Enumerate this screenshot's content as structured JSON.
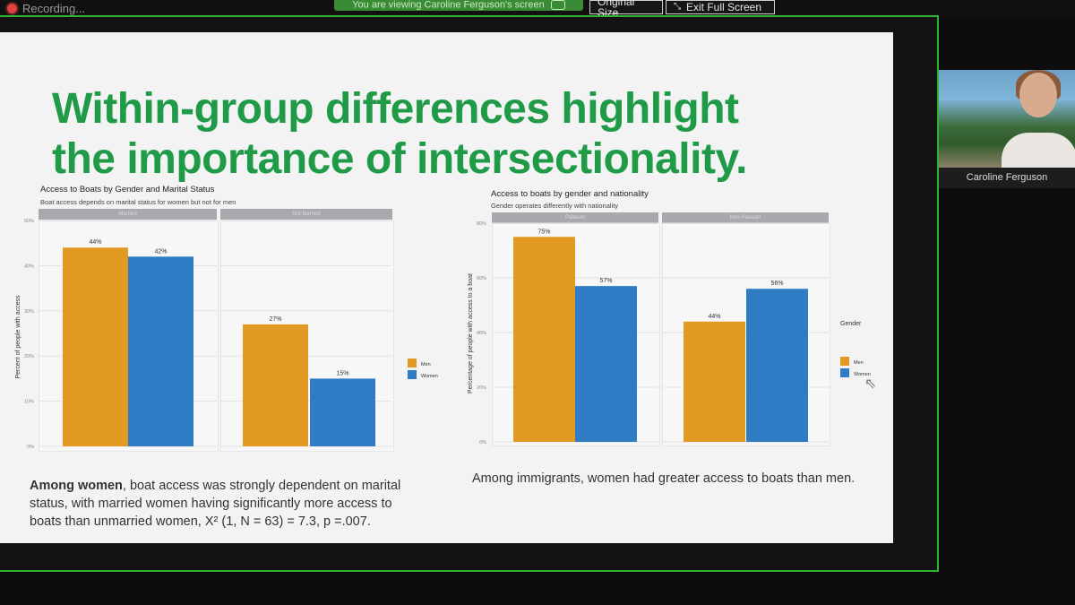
{
  "topbar": {
    "recording_label": "Recording...",
    "viewing_label": "You are viewing Caroline Ferguson's screen",
    "original_size_label": "Original Size",
    "exit_fullscreen_label": "Exit Full Screen"
  },
  "participant": {
    "name": "Caroline Ferguson"
  },
  "slide": {
    "title_line1": "Within-group differences highlight",
    "title_line2": "the importance of intersectionality.",
    "caption_left_bold": "Among women",
    "caption_left_line1": ", boat access was strongly dependent on marital",
    "caption_left_line2": "status, with married women having significantly more access to",
    "caption_left_line3": "boats than unmarried women, X² (1, N = 63) = 7.3, p =.007.",
    "caption_right": "Among immigrants, women had greater access to boats than men."
  },
  "colors": {
    "men": "#e39a22",
    "women": "#2f7cc4",
    "title_green": "#1f9a46",
    "frame_green": "#31b331"
  },
  "chart_data": [
    {
      "type": "bar",
      "title": "Access to Boats by Gender and Marital Status",
      "subtitle": "Boat access depends on marital status for women but not for men",
      "ylabel": "Percent of people with access",
      "ylim": [
        0,
        50
      ],
      "yticks": [
        "0%",
        "10%",
        "20%",
        "30%",
        "40%",
        "50%"
      ],
      "facets": [
        "Married",
        "Not Married"
      ],
      "legend": {
        "title": "",
        "entries": [
          "Men",
          "Women"
        ],
        "placement": "right"
      },
      "series": [
        {
          "name": "Men",
          "values": [
            44,
            27
          ],
          "labels": [
            "44%",
            "27%"
          ]
        },
        {
          "name": "Women",
          "values": [
            42,
            15
          ],
          "labels": [
            "42%",
            "15%"
          ]
        }
      ]
    },
    {
      "type": "bar",
      "title": "Access to boats by gender and nationality",
      "subtitle": "Gender operates differently with nationality",
      "ylabel": "Percentage of people with access to a boat",
      "ylim": [
        0,
        80
      ],
      "yticks": [
        "0%",
        "20%",
        "40%",
        "60%",
        "80%"
      ],
      "facets": [
        "Palauan",
        "Non-Palauan"
      ],
      "legend": {
        "title": "Gender",
        "entries": [
          "Men",
          "Women"
        ],
        "placement": "right"
      },
      "series": [
        {
          "name": "Men",
          "values": [
            75,
            44
          ],
          "labels": [
            "75%",
            "44%"
          ]
        },
        {
          "name": "Women",
          "values": [
            57,
            56
          ],
          "labels": [
            "57%",
            "56%"
          ]
        }
      ]
    }
  ]
}
